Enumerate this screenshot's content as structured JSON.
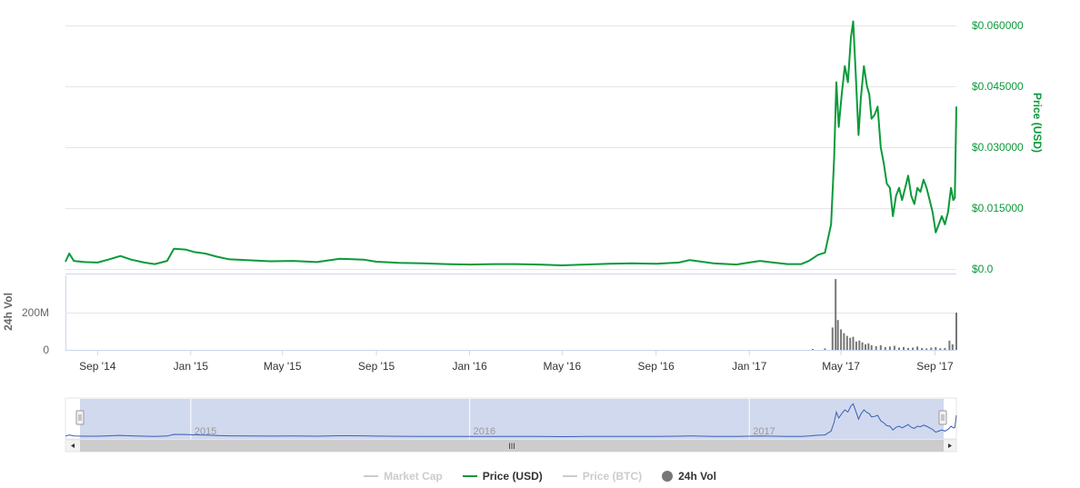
{
  "chart_data": {
    "type": "line",
    "x_tick_labels": [
      "Sep '14",
      "Jan '15",
      "May '15",
      "Sep '15",
      "Jan '16",
      "May '16",
      "Sep '16",
      "Jan '17",
      "May '17",
      "Sep '17"
    ],
    "price_axis": {
      "label": "Price (USD)",
      "ticks": [
        0.0,
        0.015,
        0.03,
        0.045,
        0.06
      ],
      "tick_labels": [
        "$0.0",
        "$0.015000",
        "$0.030000",
        "$0.045000",
        "$0.060000"
      ],
      "ylim": [
        0,
        0.06
      ],
      "color": "#0a9a3a"
    },
    "volume_axis": {
      "label": "24h Vol",
      "ticks": [
        0,
        200000000
      ],
      "tick_labels": [
        "0",
        "200M"
      ],
      "ylim": [
        0,
        400000000
      ],
      "color": "#777777"
    },
    "navigator": {
      "labels": [
        "2015",
        "2016",
        "2017"
      ],
      "handle_label": "III"
    },
    "series": [
      {
        "name": "Price (USD)",
        "axis": "price",
        "color": "#0a9a3a",
        "points": [
          [
            "2014-07-21",
            0.0018
          ],
          [
            "2014-07-26",
            0.0038
          ],
          [
            "2014-08-01",
            0.002
          ],
          [
            "2014-08-15",
            0.0017
          ],
          [
            "2014-09-01",
            0.0016
          ],
          [
            "2014-09-15",
            0.0023
          ],
          [
            "2014-10-01",
            0.0032
          ],
          [
            "2014-10-15",
            0.0023
          ],
          [
            "2014-11-01",
            0.0016
          ],
          [
            "2014-11-15",
            0.0012
          ],
          [
            "2014-12-01",
            0.002
          ],
          [
            "2014-12-10",
            0.005
          ],
          [
            "2014-12-25",
            0.0048
          ],
          [
            "2015-01-05",
            0.0042
          ],
          [
            "2015-01-20",
            0.0038
          ],
          [
            "2015-02-05",
            0.003
          ],
          [
            "2015-02-20",
            0.0024
          ],
          [
            "2015-03-15",
            0.0022
          ],
          [
            "2015-04-15",
            0.0019
          ],
          [
            "2015-05-15",
            0.002
          ],
          [
            "2015-06-15",
            0.0017
          ],
          [
            "2015-07-15",
            0.0025
          ],
          [
            "2015-08-15",
            0.0023
          ],
          [
            "2015-09-01",
            0.0018
          ],
          [
            "2015-10-01",
            0.0015
          ],
          [
            "2015-11-01",
            0.0014
          ],
          [
            "2015-12-01",
            0.0012
          ],
          [
            "2016-01-01",
            0.0011
          ],
          [
            "2016-02-01",
            0.0012
          ],
          [
            "2016-03-01",
            0.0012
          ],
          [
            "2016-04-01",
            0.0011
          ],
          [
            "2016-05-01",
            0.0009
          ],
          [
            "2016-06-01",
            0.0011
          ],
          [
            "2016-07-01",
            0.0013
          ],
          [
            "2016-08-01",
            0.0014
          ],
          [
            "2016-09-01",
            0.0013
          ],
          [
            "2016-10-01",
            0.0016
          ],
          [
            "2016-10-15",
            0.0022
          ],
          [
            "2016-11-15",
            0.0014
          ],
          [
            "2016-12-15",
            0.0011
          ],
          [
            "2017-01-01",
            0.0016
          ],
          [
            "2017-01-15",
            0.002
          ],
          [
            "2017-02-01",
            0.0016
          ],
          [
            "2017-02-20",
            0.0012
          ],
          [
            "2017-03-10",
            0.0012
          ],
          [
            "2017-03-20",
            0.002
          ],
          [
            "2017-04-01",
            0.0035
          ],
          [
            "2017-04-10",
            0.004
          ],
          [
            "2017-04-18",
            0.011
          ],
          [
            "2017-04-22",
            0.027
          ],
          [
            "2017-04-25",
            0.046
          ],
          [
            "2017-04-28",
            0.035
          ],
          [
            "2017-05-02",
            0.043
          ],
          [
            "2017-05-06",
            0.05
          ],
          [
            "2017-05-10",
            0.046
          ],
          [
            "2017-05-14",
            0.057
          ],
          [
            "2017-05-17",
            0.061
          ],
          [
            "2017-05-20",
            0.049
          ],
          [
            "2017-05-24",
            0.033
          ],
          [
            "2017-05-27",
            0.042
          ],
          [
            "2017-05-31",
            0.05
          ],
          [
            "2017-06-04",
            0.045
          ],
          [
            "2017-06-07",
            0.043
          ],
          [
            "2017-06-10",
            0.037
          ],
          [
            "2017-06-14",
            0.038
          ],
          [
            "2017-06-18",
            0.04
          ],
          [
            "2017-06-22",
            0.03
          ],
          [
            "2017-06-26",
            0.026
          ],
          [
            "2017-06-30",
            0.021
          ],
          [
            "2017-07-04",
            0.02
          ],
          [
            "2017-07-08",
            0.013
          ],
          [
            "2017-07-12",
            0.018
          ],
          [
            "2017-07-16",
            0.02
          ],
          [
            "2017-07-20",
            0.017
          ],
          [
            "2017-07-24",
            0.02
          ],
          [
            "2017-07-28",
            0.023
          ],
          [
            "2017-08-01",
            0.018
          ],
          [
            "2017-08-05",
            0.016
          ],
          [
            "2017-08-09",
            0.02
          ],
          [
            "2017-08-13",
            0.019
          ],
          [
            "2017-08-17",
            0.022
          ],
          [
            "2017-08-21",
            0.02
          ],
          [
            "2017-08-25",
            0.017
          ],
          [
            "2017-08-29",
            0.014
          ],
          [
            "2017-09-02",
            0.009
          ],
          [
            "2017-09-06",
            0.011
          ],
          [
            "2017-09-10",
            0.013
          ],
          [
            "2017-09-14",
            0.011
          ],
          [
            "2017-09-18",
            0.014
          ],
          [
            "2017-09-22",
            0.02
          ],
          [
            "2017-09-25",
            0.017
          ],
          [
            "2017-09-27",
            0.0175
          ],
          [
            "2017-09-29",
            0.04
          ]
        ]
      },
      {
        "name": "24h Vol",
        "axis": "volume",
        "color": "#777777",
        "points": [
          [
            "2017-03-25",
            5000000
          ],
          [
            "2017-04-10",
            8000000
          ],
          [
            "2017-04-20",
            120000000
          ],
          [
            "2017-04-24",
            380000000
          ],
          [
            "2017-04-27",
            160000000
          ],
          [
            "2017-05-01",
            110000000
          ],
          [
            "2017-05-05",
            90000000
          ],
          [
            "2017-05-09",
            75000000
          ],
          [
            "2017-05-13",
            65000000
          ],
          [
            "2017-05-17",
            70000000
          ],
          [
            "2017-05-21",
            45000000
          ],
          [
            "2017-05-25",
            50000000
          ],
          [
            "2017-05-29",
            40000000
          ],
          [
            "2017-06-02",
            30000000
          ],
          [
            "2017-06-06",
            35000000
          ],
          [
            "2017-06-10",
            25000000
          ],
          [
            "2017-06-16",
            20000000
          ],
          [
            "2017-06-22",
            25000000
          ],
          [
            "2017-06-28",
            15000000
          ],
          [
            "2017-07-04",
            18000000
          ],
          [
            "2017-07-10",
            22000000
          ],
          [
            "2017-07-16",
            12000000
          ],
          [
            "2017-07-22",
            15000000
          ],
          [
            "2017-07-28",
            10000000
          ],
          [
            "2017-08-03",
            12000000
          ],
          [
            "2017-08-09",
            18000000
          ],
          [
            "2017-08-15",
            10000000
          ],
          [
            "2017-08-21",
            8000000
          ],
          [
            "2017-08-27",
            12000000
          ],
          [
            "2017-09-02",
            15000000
          ],
          [
            "2017-09-08",
            9000000
          ],
          [
            "2017-09-14",
            10000000
          ],
          [
            "2017-09-20",
            50000000
          ],
          [
            "2017-09-24",
            30000000
          ],
          [
            "2017-09-29",
            200000000
          ]
        ]
      }
    ]
  },
  "legend": {
    "items": [
      {
        "label": "Market Cap",
        "state": "hidden",
        "color": "#cccccc",
        "symbol": "line"
      },
      {
        "label": "Price (USD)",
        "state": "shown",
        "color": "#0a9a3a",
        "symbol": "line"
      },
      {
        "label": "Price (BTC)",
        "state": "hidden",
        "color": "#cccccc",
        "symbol": "line"
      },
      {
        "label": "24h Vol",
        "state": "shown",
        "color": "#777777",
        "symbol": "dot"
      }
    ]
  },
  "colors": {
    "grid": "#e6e6e6",
    "navigator_fill": "#d1d9ee",
    "navigator_line": "#3a5fb5",
    "axis_text": "#666666"
  }
}
